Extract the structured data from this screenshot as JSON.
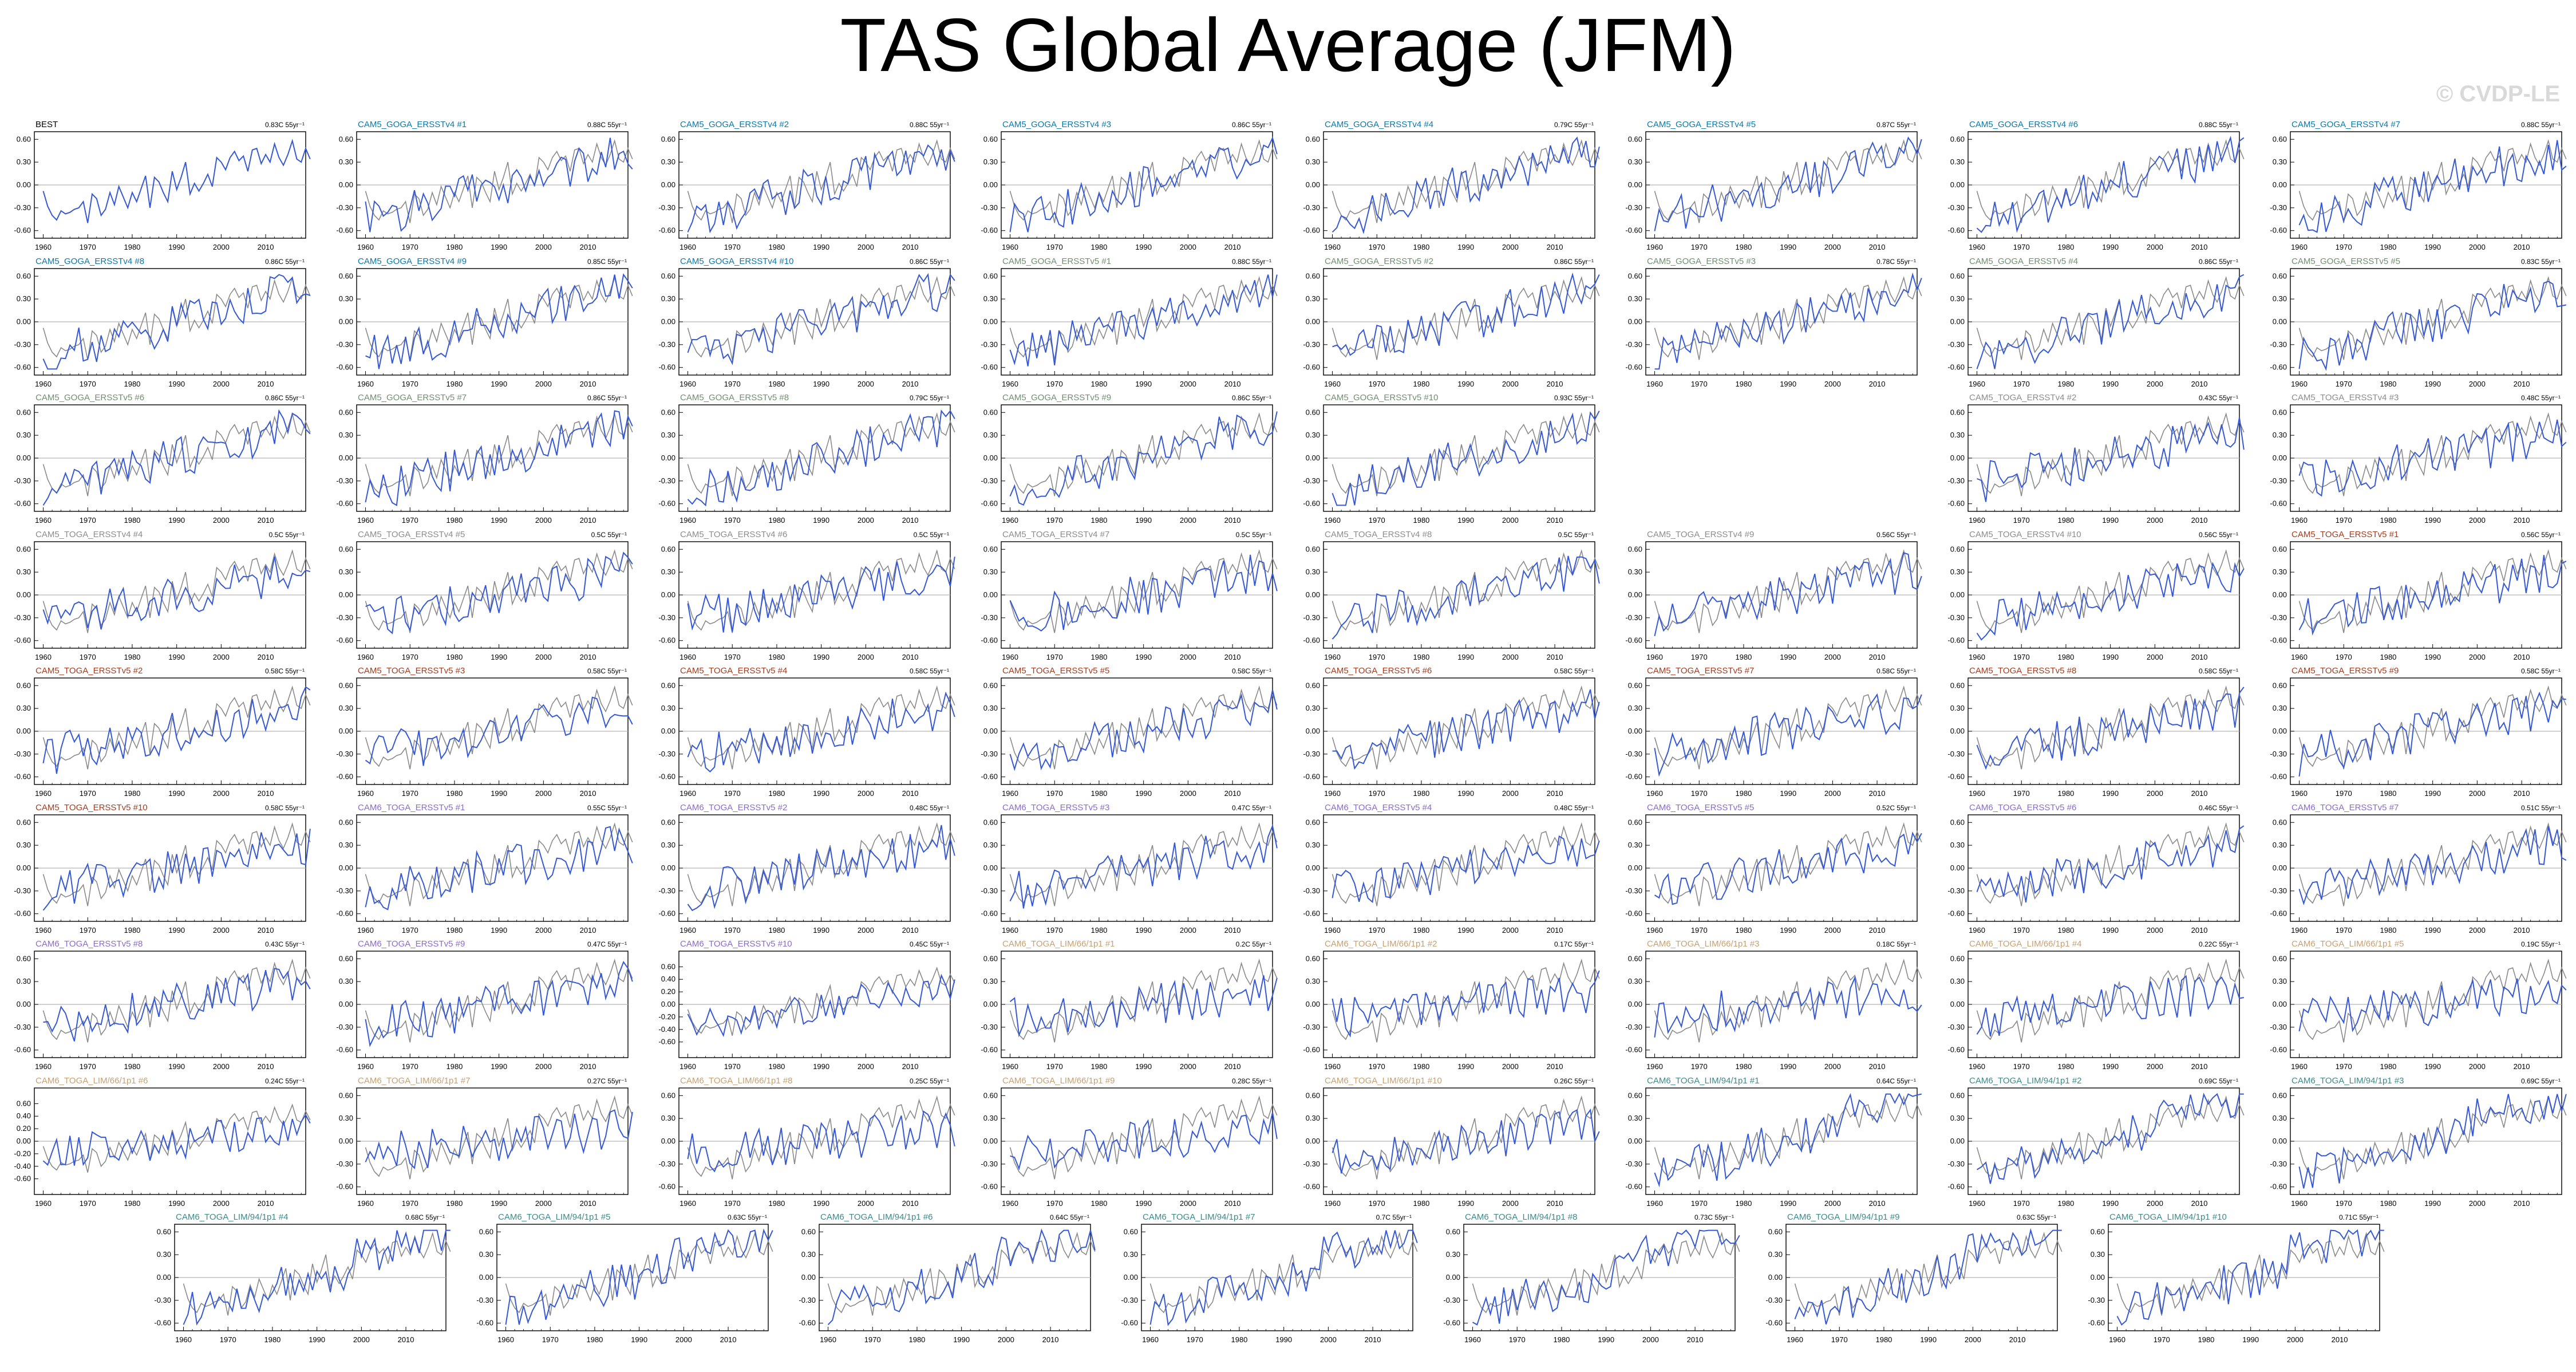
{
  "title": "TAS Global Average (JFM)",
  "watermark": "© CVDP-LE",
  "colors": {
    "BEST": "#000000",
    "CAM5_GOGA_ERSSTv4": "#0b78a8",
    "CAM5_GOGA_ERSSTv5": "#6f8f6f",
    "CAM5_TOGA_ERSSTv4": "#8c8c8c",
    "CAM5_TOGA_ERSSTv5": "#a33c1e",
    "CAM6_TOGA_ERSSTv5": "#8a6ad0",
    "CAM6_TOGA_LIM/66/1p1": "#c8a070",
    "CAM6_TOGA_LIM/94/1p1": "#3a8a8a",
    "ensemble_line": "#3558d6",
    "obs_line": "#8a8a8a",
    "zero_line": "#b4b4b4"
  },
  "chart_data": {
    "type": "line",
    "xlim": [
      1958,
      2019
    ],
    "xticks": [
      1960,
      1970,
      1980,
      1990,
      2000,
      2010
    ],
    "ylim_default": [
      -0.7,
      0.7
    ],
    "yticks_default": [
      0.6,
      0.3,
      0.0,
      -0.3,
      -0.6
    ],
    "ytick_labels_default": [
      "0.60",
      "0.30",
      "0.00",
      "-0.30",
      "-0.60"
    ],
    "ylim_alt": [
      -0.85,
      0.85
    ],
    "yticks_alt": [
      0.6,
      0.4,
      0.2,
      0.0,
      -0.2,
      -0.4,
      -0.6
    ],
    "ytick_labels_alt": [
      "0.60",
      "0.40",
      "0.20",
      "0.00",
      "-0.20",
      "-0.40",
      "-0.60"
    ],
    "obs_series": {
      "name": "BEST",
      "start_year": 1960,
      "values": [
        -0.08,
        -0.28,
        -0.4,
        -0.46,
        -0.34,
        -0.38,
        -0.36,
        -0.32,
        -0.3,
        -0.22,
        -0.5,
        -0.12,
        -0.18,
        -0.4,
        -0.32,
        -0.1,
        -0.26,
        -0.02,
        -0.16,
        -0.3,
        -0.1,
        -0.22,
        -0.05,
        0.12,
        -0.3,
        0.1,
        0.04,
        -0.1,
        -0.22,
        0.18,
        -0.06,
        0.1,
        0.3,
        -0.12,
        0.02,
        -0.08,
        0.02,
        0.14,
        -0.02,
        0.36,
        0.3,
        0.2,
        0.36,
        0.44,
        0.32,
        0.38,
        0.18,
        0.46,
        0.48,
        0.28,
        0.4,
        0.3,
        0.54,
        0.36,
        0.26,
        0.4,
        0.58,
        0.34,
        0.3,
        0.48,
        0.34
      ]
    },
    "panels": [
      {
        "name": "BEST",
        "group": "BEST",
        "trend": "0.83C 55yr⁻¹",
        "seed": 0,
        "row": 0,
        "col": 0,
        "yscale": "default"
      },
      {
        "name": "CAM5_GOGA_ERSSTv4 #1",
        "group": "CAM5_GOGA_ERSSTv4",
        "trend": "0.88C 55yr⁻¹",
        "seed": 1,
        "row": 0,
        "col": 1,
        "yscale": "default"
      },
      {
        "name": "CAM5_GOGA_ERSSTv4 #2",
        "group": "CAM5_GOGA_ERSSTv4",
        "trend": "0.88C 55yr⁻¹",
        "seed": 2,
        "row": 0,
        "col": 2,
        "yscale": "default"
      },
      {
        "name": "CAM5_GOGA_ERSSTv4 #3",
        "group": "CAM5_GOGA_ERSSTv4",
        "trend": "0.86C 55yr⁻¹",
        "seed": 3,
        "row": 0,
        "col": 3,
        "yscale": "default"
      },
      {
        "name": "CAM5_GOGA_ERSSTv4 #4",
        "group": "CAM5_GOGA_ERSSTv4",
        "trend": "0.79C 55yr⁻¹",
        "seed": 4,
        "row": 0,
        "col": 4,
        "yscale": "default"
      },
      {
        "name": "CAM5_GOGA_ERSSTv4 #5",
        "group": "CAM5_GOGA_ERSSTv4",
        "trend": "0.87C 55yr⁻¹",
        "seed": 5,
        "row": 0,
        "col": 5,
        "yscale": "default"
      },
      {
        "name": "CAM5_GOGA_ERSSTv4 #6",
        "group": "CAM5_GOGA_ERSSTv4",
        "trend": "0.88C 55yr⁻¹",
        "seed": 6,
        "row": 0,
        "col": 6,
        "yscale": "default"
      },
      {
        "name": "CAM5_GOGA_ERSSTv4 #7",
        "group": "CAM5_GOGA_ERSSTv4",
        "trend": "0.88C 55yr⁻¹",
        "seed": 7,
        "row": 0,
        "col": 7,
        "yscale": "default"
      },
      {
        "name": "CAM5_GOGA_ERSSTv4 #8",
        "group": "CAM5_GOGA_ERSSTv4",
        "trend": "0.86C 55yr⁻¹",
        "seed": 8,
        "row": 1,
        "col": 0,
        "yscale": "default"
      },
      {
        "name": "CAM5_GOGA_ERSSTv4 #9",
        "group": "CAM5_GOGA_ERSSTv4",
        "trend": "0.85C 55yr⁻¹",
        "seed": 9,
        "row": 1,
        "col": 1,
        "yscale": "default"
      },
      {
        "name": "CAM5_GOGA_ERSSTv4 #10",
        "group": "CAM5_GOGA_ERSSTv4",
        "trend": "0.86C 55yr⁻¹",
        "seed": 10,
        "row": 1,
        "col": 2,
        "yscale": "default"
      },
      {
        "name": "CAM5_GOGA_ERSSTv5 #1",
        "group": "CAM5_GOGA_ERSSTv5",
        "trend": "0.88C 55yr⁻¹",
        "seed": 11,
        "row": 1,
        "col": 3,
        "yscale": "default"
      },
      {
        "name": "CAM5_GOGA_ERSSTv5 #2",
        "group": "CAM5_GOGA_ERSSTv5",
        "trend": "0.86C 55yr⁻¹",
        "seed": 12,
        "row": 1,
        "col": 4,
        "yscale": "default"
      },
      {
        "name": "CAM5_GOGA_ERSSTv5 #3",
        "group": "CAM5_GOGA_ERSSTv5",
        "trend": "0.78C 55yr⁻¹",
        "seed": 13,
        "row": 1,
        "col": 5,
        "yscale": "default"
      },
      {
        "name": "CAM5_GOGA_ERSSTv5 #4",
        "group": "CAM5_GOGA_ERSSTv5",
        "trend": "0.86C 55yr⁻¹",
        "seed": 14,
        "row": 1,
        "col": 6,
        "yscale": "default"
      },
      {
        "name": "CAM5_GOGA_ERSSTv5 #5",
        "group": "CAM5_GOGA_ERSSTv5",
        "trend": "0.83C 55yr⁻¹",
        "seed": 15,
        "row": 1,
        "col": 7,
        "yscale": "default"
      },
      {
        "name": "CAM5_GOGA_ERSSTv5 #6",
        "group": "CAM5_GOGA_ERSSTv5",
        "trend": "0.86C 55yr⁻¹",
        "seed": 16,
        "row": 2,
        "col": 0,
        "yscale": "default"
      },
      {
        "name": "CAM5_GOGA_ERSSTv5 #7",
        "group": "CAM5_GOGA_ERSSTv5",
        "trend": "0.86C 55yr⁻¹",
        "seed": 17,
        "row": 2,
        "col": 1,
        "yscale": "default"
      },
      {
        "name": "CAM5_GOGA_ERSSTv5 #8",
        "group": "CAM5_GOGA_ERSSTv5",
        "trend": "0.79C 55yr⁻¹",
        "seed": 18,
        "row": 2,
        "col": 2,
        "yscale": "default"
      },
      {
        "name": "CAM5_GOGA_ERSSTv5 #9",
        "group": "CAM5_GOGA_ERSSTv5",
        "trend": "0.86C 55yr⁻¹",
        "seed": 19,
        "row": 2,
        "col": 3,
        "yscale": "default"
      },
      {
        "name": "CAM5_GOGA_ERSSTv5 #10",
        "group": "CAM5_GOGA_ERSSTv5",
        "trend": "0.93C 55yr⁻¹",
        "seed": 20,
        "row": 2,
        "col": 4,
        "yscale": "default"
      },
      {
        "name": "CAM5_TOGA_ERSSTv4 #2",
        "group": "CAM5_TOGA_ERSSTv4",
        "trend": "0.43C 55yr⁻¹",
        "seed": 21,
        "row": 2,
        "col": 6,
        "yscale": "default"
      },
      {
        "name": "CAM5_TOGA_ERSSTv4 #3",
        "group": "CAM5_TOGA_ERSSTv4",
        "trend": "0.48C 55yr⁻¹",
        "seed": 22,
        "row": 2,
        "col": 7,
        "yscale": "default"
      },
      {
        "name": "CAM5_TOGA_ERSSTv4 #4",
        "group": "CAM5_TOGA_ERSSTv4",
        "trend": "0.5C 55yr⁻¹",
        "seed": 23,
        "row": 3,
        "col": 0,
        "yscale": "default"
      },
      {
        "name": "CAM5_TOGA_ERSSTv4 #5",
        "group": "CAM5_TOGA_ERSSTv4",
        "trend": "0.5C 55yr⁻¹",
        "seed": 24,
        "row": 3,
        "col": 1,
        "yscale": "default"
      },
      {
        "name": "CAM5_TOGA_ERSSTv4 #6",
        "group": "CAM5_TOGA_ERSSTv4",
        "trend": "0.5C 55yr⁻¹",
        "seed": 25,
        "row": 3,
        "col": 2,
        "yscale": "default"
      },
      {
        "name": "CAM5_TOGA_ERSSTv4 #7",
        "group": "CAM5_TOGA_ERSSTv4",
        "trend": "0.5C 55yr⁻¹",
        "seed": 26,
        "row": 3,
        "col": 3,
        "yscale": "default"
      },
      {
        "name": "CAM5_TOGA_ERSSTv4 #8",
        "group": "CAM5_TOGA_ERSSTv4",
        "trend": "0.5C 55yr⁻¹",
        "seed": 27,
        "row": 3,
        "col": 4,
        "yscale": "default"
      },
      {
        "name": "CAM5_TOGA_ERSSTv4 #9",
        "group": "CAM5_TOGA_ERSSTv4",
        "trend": "0.56C 55yr⁻¹",
        "seed": 28,
        "row": 3,
        "col": 5,
        "yscale": "default"
      },
      {
        "name": "CAM5_TOGA_ERSSTv4 #10",
        "group": "CAM5_TOGA_ERSSTv4",
        "trend": "0.56C 55yr⁻¹",
        "seed": 29,
        "row": 3,
        "col": 6,
        "yscale": "default"
      },
      {
        "name": "CAM5_TOGA_ERSSTv5 #1",
        "group": "CAM5_TOGA_ERSSTv5",
        "trend": "0.56C 55yr⁻¹",
        "seed": 30,
        "row": 3,
        "col": 7,
        "yscale": "default"
      },
      {
        "name": "CAM5_TOGA_ERSSTv5 #2",
        "group": "CAM5_TOGA_ERSSTv5",
        "trend": "0.58C 55yr⁻¹",
        "seed": 31,
        "row": 4,
        "col": 0,
        "yscale": "default"
      },
      {
        "name": "CAM5_TOGA_ERSSTv5 #3",
        "group": "CAM5_TOGA_ERSSTv5",
        "trend": "0.58C 55yr⁻¹",
        "seed": 32,
        "row": 4,
        "col": 1,
        "yscale": "default"
      },
      {
        "name": "CAM5_TOGA_ERSSTv5 #4",
        "group": "CAM5_TOGA_ERSSTv5",
        "trend": "0.58C 55yr⁻¹",
        "seed": 33,
        "row": 4,
        "col": 2,
        "yscale": "default"
      },
      {
        "name": "CAM5_TOGA_ERSSTv5 #5",
        "group": "CAM5_TOGA_ERSSTv5",
        "trend": "0.58C 55yr⁻¹",
        "seed": 34,
        "row": 4,
        "col": 3,
        "yscale": "default"
      },
      {
        "name": "CAM5_TOGA_ERSSTv5 #6",
        "group": "CAM5_TOGA_ERSSTv5",
        "trend": "0.58C 55yr⁻¹",
        "seed": 35,
        "row": 4,
        "col": 4,
        "yscale": "default"
      },
      {
        "name": "CAM5_TOGA_ERSSTv5 #7",
        "group": "CAM5_TOGA_ERSSTv5",
        "trend": "0.58C 55yr⁻¹",
        "seed": 36,
        "row": 4,
        "col": 5,
        "yscale": "default"
      },
      {
        "name": "CAM5_TOGA_ERSSTv5 #8",
        "group": "CAM5_TOGA_ERSSTv5",
        "trend": "0.58C 55yr⁻¹",
        "seed": 37,
        "row": 4,
        "col": 6,
        "yscale": "default"
      },
      {
        "name": "CAM5_TOGA_ERSSTv5 #9",
        "group": "CAM5_TOGA_ERSSTv5",
        "trend": "0.58C 55yr⁻¹",
        "seed": 38,
        "row": 4,
        "col": 7,
        "yscale": "default"
      },
      {
        "name": "CAM5_TOGA_ERSSTv5 #10",
        "group": "CAM5_TOGA_ERSSTv5",
        "trend": "0.58C 55yr⁻¹",
        "seed": 39,
        "row": 5,
        "col": 0,
        "yscale": "default"
      },
      {
        "name": "CAM6_TOGA_ERSSTv5 #1",
        "group": "CAM6_TOGA_ERSSTv5",
        "trend": "0.55C 55yr⁻¹",
        "seed": 40,
        "row": 5,
        "col": 1,
        "yscale": "default"
      },
      {
        "name": "CAM6_TOGA_ERSSTv5 #2",
        "group": "CAM6_TOGA_ERSSTv5",
        "trend": "0.48C 55yr⁻¹",
        "seed": 41,
        "row": 5,
        "col": 2,
        "yscale": "default"
      },
      {
        "name": "CAM6_TOGA_ERSSTv5 #3",
        "group": "CAM6_TOGA_ERSSTv5",
        "trend": "0.47C 55yr⁻¹",
        "seed": 42,
        "row": 5,
        "col": 3,
        "yscale": "default"
      },
      {
        "name": "CAM6_TOGA_ERSSTv5 #4",
        "group": "CAM6_TOGA_ERSSTv5",
        "trend": "0.48C 55yr⁻¹",
        "seed": 43,
        "row": 5,
        "col": 4,
        "yscale": "default"
      },
      {
        "name": "CAM6_TOGA_ERSSTv5 #5",
        "group": "CAM6_TOGA_ERSSTv5",
        "trend": "0.52C 55yr⁻¹",
        "seed": 44,
        "row": 5,
        "col": 5,
        "yscale": "default"
      },
      {
        "name": "CAM6_TOGA_ERSSTv5 #6",
        "group": "CAM6_TOGA_ERSSTv5",
        "trend": "0.46C 55yr⁻¹",
        "seed": 45,
        "row": 5,
        "col": 6,
        "yscale": "default"
      },
      {
        "name": "CAM6_TOGA_ERSSTv5 #7",
        "group": "CAM6_TOGA_ERSSTv5",
        "trend": "0.51C 55yr⁻¹",
        "seed": 46,
        "row": 5,
        "col": 7,
        "yscale": "default"
      },
      {
        "name": "CAM6_TOGA_ERSSTv5 #8",
        "group": "CAM6_TOGA_ERSSTv5",
        "trend": "0.43C 55yr⁻¹",
        "seed": 47,
        "row": 6,
        "col": 0,
        "yscale": "default"
      },
      {
        "name": "CAM6_TOGA_ERSSTv5 #9",
        "group": "CAM6_TOGA_ERSSTv5",
        "trend": "0.47C 55yr⁻¹",
        "seed": 48,
        "row": 6,
        "col": 1,
        "yscale": "default"
      },
      {
        "name": "CAM6_TOGA_ERSSTv5 #10",
        "group": "CAM6_TOGA_ERSSTv5",
        "trend": "0.45C 55yr⁻¹",
        "seed": 49,
        "row": 6,
        "col": 2,
        "yscale": "alt"
      },
      {
        "name": "CAM6_TOGA_LIM/66/1p1 #1",
        "group": "CAM6_TOGA_LIM/66/1p1",
        "trend": "0.2C 55yr⁻¹",
        "seed": 50,
        "row": 6,
        "col": 3,
        "yscale": "default"
      },
      {
        "name": "CAM6_TOGA_LIM/66/1p1 #2",
        "group": "CAM6_TOGA_LIM/66/1p1",
        "trend": "0.17C 55yr⁻¹",
        "seed": 51,
        "row": 6,
        "col": 4,
        "yscale": "default"
      },
      {
        "name": "CAM6_TOGA_LIM/66/1p1 #3",
        "group": "CAM6_TOGA_LIM/66/1p1",
        "trend": "0.18C 55yr⁻¹",
        "seed": 52,
        "row": 6,
        "col": 5,
        "yscale": "default"
      },
      {
        "name": "CAM6_TOGA_LIM/66/1p1 #4",
        "group": "CAM6_TOGA_LIM/66/1p1",
        "trend": "0.22C 55yr⁻¹",
        "seed": 53,
        "row": 6,
        "col": 6,
        "yscale": "default"
      },
      {
        "name": "CAM6_TOGA_LIM/66/1p1 #5",
        "group": "CAM6_TOGA_LIM/66/1p1",
        "trend": "0.19C 55yr⁻¹",
        "seed": 54,
        "row": 6,
        "col": 7,
        "yscale": "default"
      },
      {
        "name": "CAM6_TOGA_LIM/66/1p1 #6",
        "group": "CAM6_TOGA_LIM/66/1p1",
        "trend": "0.24C 55yr⁻¹",
        "seed": 55,
        "row": 7,
        "col": 0,
        "yscale": "alt"
      },
      {
        "name": "CAM6_TOGA_LIM/66/1p1 #7",
        "group": "CAM6_TOGA_LIM/66/1p1",
        "trend": "0.27C 55yr⁻¹",
        "seed": 56,
        "row": 7,
        "col": 1,
        "yscale": "default"
      },
      {
        "name": "CAM6_TOGA_LIM/66/1p1 #8",
        "group": "CAM6_TOGA_LIM/66/1p1",
        "trend": "0.25C 55yr⁻¹",
        "seed": 57,
        "row": 7,
        "col": 2,
        "yscale": "default"
      },
      {
        "name": "CAM6_TOGA_LIM/66/1p1 #9",
        "group": "CAM6_TOGA_LIM/66/1p1",
        "trend": "0.28C 55yr⁻¹",
        "seed": 58,
        "row": 7,
        "col": 3,
        "yscale": "default"
      },
      {
        "name": "CAM6_TOGA_LIM/66/1p1 #10",
        "group": "CAM6_TOGA_LIM/66/1p1",
        "trend": "0.26C 55yr⁻¹",
        "seed": 59,
        "row": 7,
        "col": 4,
        "yscale": "default"
      },
      {
        "name": "CAM6_TOGA_LIM/94/1p1 #1",
        "group": "CAM6_TOGA_LIM/94/1p1",
        "trend": "0.64C 55yr⁻¹",
        "seed": 60,
        "row": 7,
        "col": 5,
        "yscale": "default"
      },
      {
        "name": "CAM6_TOGA_LIM/94/1p1 #2",
        "group": "CAM6_TOGA_LIM/94/1p1",
        "trend": "0.69C 55yr⁻¹",
        "seed": 61,
        "row": 7,
        "col": 6,
        "yscale": "default"
      },
      {
        "name": "CAM6_TOGA_LIM/94/1p1 #3",
        "group": "CAM6_TOGA_LIM/94/1p1",
        "trend": "0.69C 55yr⁻¹",
        "seed": 62,
        "row": 7,
        "col": 7,
        "yscale": "default"
      },
      {
        "name": "CAM6_TOGA_LIM/94/1p1 #4",
        "group": "CAM6_TOGA_LIM/94/1p1",
        "trend": "0.68C 55yr⁻¹",
        "seed": 63,
        "row": 8,
        "col": 0,
        "yscale": "default"
      },
      {
        "name": "CAM6_TOGA_LIM/94/1p1 #5",
        "group": "CAM6_TOGA_LIM/94/1p1",
        "trend": "0.63C 55yr⁻¹",
        "seed": 64,
        "row": 8,
        "col": 1,
        "yscale": "default"
      },
      {
        "name": "CAM6_TOGA_LIM/94/1p1 #6",
        "group": "CAM6_TOGA_LIM/94/1p1",
        "trend": "0.64C 55yr⁻¹",
        "seed": 65,
        "row": 8,
        "col": 2,
        "yscale": "default"
      },
      {
        "name": "CAM6_TOGA_LIM/94/1p1 #7",
        "group": "CAM6_TOGA_LIM/94/1p1",
        "trend": "0.7C 55yr⁻¹",
        "seed": 66,
        "row": 8,
        "col": 3,
        "yscale": "default"
      },
      {
        "name": "CAM6_TOGA_LIM/94/1p1 #8",
        "group": "CAM6_TOGA_LIM/94/1p1",
        "trend": "0.73C 55yr⁻¹",
        "seed": 67,
        "row": 8,
        "col": 4,
        "yscale": "default"
      },
      {
        "name": "CAM6_TOGA_LIM/94/1p1 #9",
        "group": "CAM6_TOGA_LIM/94/1p1",
        "trend": "0.63C 55yr⁻¹",
        "seed": 68,
        "row": 8,
        "col": 5,
        "yscale": "default"
      },
      {
        "name": "CAM6_TOGA_LIM/94/1p1 #10",
        "group": "CAM6_TOGA_LIM/94/1p1",
        "trend": "0.71C 55yr⁻¹",
        "seed": 69,
        "row": 8,
        "col": 6,
        "yscale": "default"
      }
    ]
  }
}
